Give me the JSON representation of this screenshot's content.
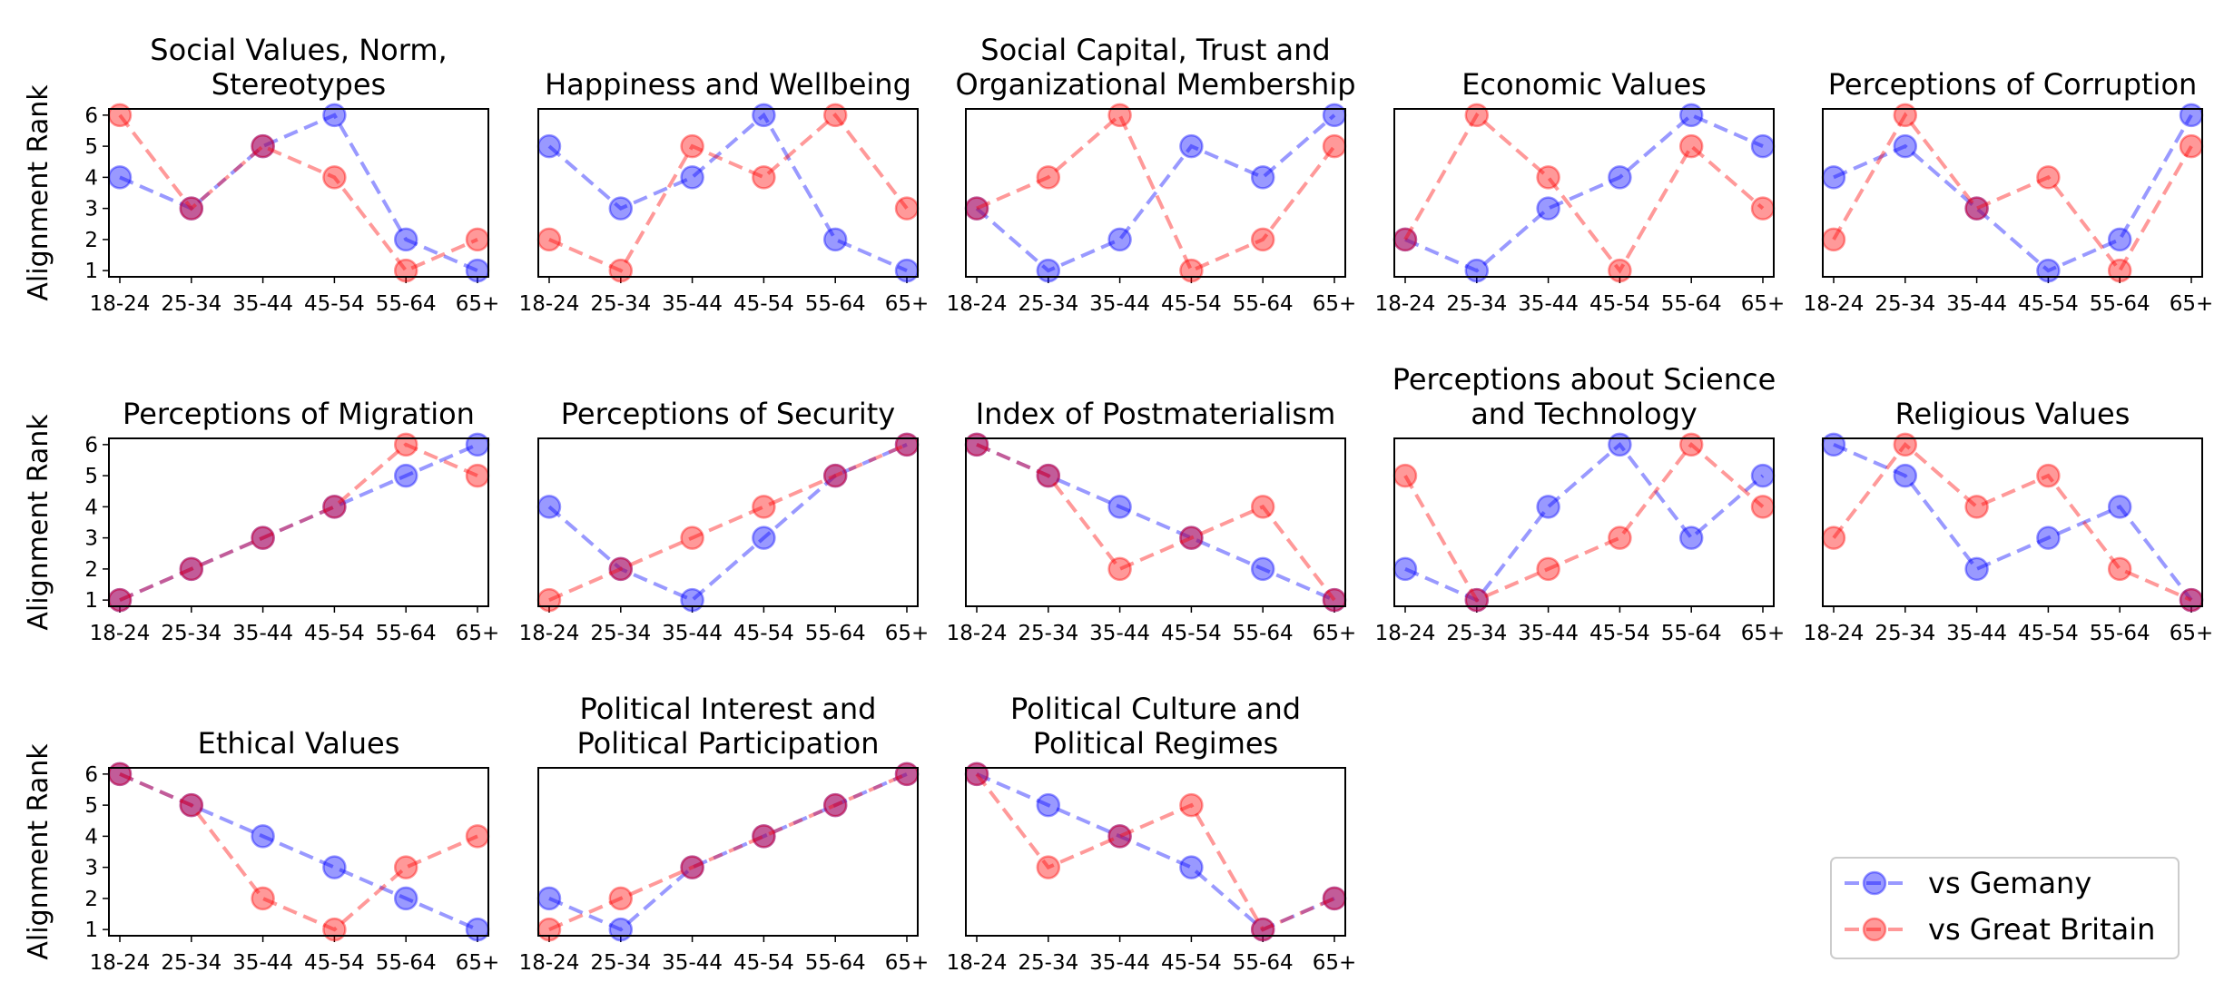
{
  "chart_data": {
    "type": "line",
    "ylabel": "Alignment Rank",
    "categories": [
      "18-24",
      "25-34",
      "35-44",
      "45-54",
      "55-64",
      "65+"
    ],
    "yticks": [
      1,
      2,
      3,
      4,
      5,
      6
    ],
    "ylim": [
      0.8,
      6.2
    ],
    "series_styles": [
      {
        "name": "vs Gemany",
        "color": "#0000ff"
      },
      {
        "name": "vs Great Britain",
        "color": "#ff0000"
      }
    ],
    "panels": [
      {
        "title_lines": [
          "Social Values, Norm,",
          "Stereotypes"
        ],
        "series": [
          {
            "name": "vs Gemany",
            "values": [
              4,
              3,
              5,
              6,
              2,
              1
            ]
          },
          {
            "name": "vs Great Britain",
            "values": [
              6,
              3,
              5,
              4,
              1,
              2
            ]
          }
        ]
      },
      {
        "title_lines": [
          "Happiness and Wellbeing"
        ],
        "series": [
          {
            "name": "vs Gemany",
            "values": [
              5,
              3,
              4,
              6,
              2,
              1
            ]
          },
          {
            "name": "vs Great Britain",
            "values": [
              2,
              1,
              5,
              4,
              6,
              3
            ]
          }
        ]
      },
      {
        "title_lines": [
          "Social Capital, Trust and",
          "Organizational Membership"
        ],
        "series": [
          {
            "name": "vs Gemany",
            "values": [
              3,
              1,
              2,
              5,
              4,
              6
            ]
          },
          {
            "name": "vs Great Britain",
            "values": [
              3,
              4,
              6,
              1,
              2,
              5
            ]
          }
        ]
      },
      {
        "title_lines": [
          "Economic Values"
        ],
        "series": [
          {
            "name": "vs Gemany",
            "values": [
              2,
              1,
              3,
              4,
              6,
              5
            ]
          },
          {
            "name": "vs Great Britain",
            "values": [
              2,
              6,
              4,
              1,
              5,
              3
            ]
          }
        ]
      },
      {
        "title_lines": [
          "Perceptions of Corruption"
        ],
        "series": [
          {
            "name": "vs Gemany",
            "values": [
              4,
              5,
              3,
              1,
              2,
              6
            ]
          },
          {
            "name": "vs Great Britain",
            "values": [
              2,
              6,
              3,
              4,
              1,
              5
            ]
          }
        ]
      },
      {
        "title_lines": [
          "Perceptions of Migration"
        ],
        "series": [
          {
            "name": "vs Gemany",
            "values": [
              1,
              2,
              3,
              4,
              5,
              6
            ]
          },
          {
            "name": "vs Great Britain",
            "values": [
              1,
              2,
              3,
              4,
              6,
              5
            ]
          }
        ]
      },
      {
        "title_lines": [
          "Perceptions of Security"
        ],
        "series": [
          {
            "name": "vs Gemany",
            "values": [
              4,
              2,
              1,
              3,
              5,
              6
            ]
          },
          {
            "name": "vs Great Britain",
            "values": [
              1,
              2,
              3,
              4,
              5,
              6
            ]
          }
        ]
      },
      {
        "title_lines": [
          "Index of Postmaterialism"
        ],
        "series": [
          {
            "name": "vs Gemany",
            "values": [
              6,
              5,
              4,
              3,
              2,
              1
            ]
          },
          {
            "name": "vs Great Britain",
            "values": [
              6,
              5,
              2,
              3,
              4,
              1
            ]
          }
        ]
      },
      {
        "title_lines": [
          "Perceptions about Science",
          "and Technology"
        ],
        "series": [
          {
            "name": "vs Gemany",
            "values": [
              2,
              1,
              4,
              6,
              3,
              5
            ]
          },
          {
            "name": "vs Great Britain",
            "values": [
              5,
              1,
              2,
              3,
              6,
              4
            ]
          }
        ]
      },
      {
        "title_lines": [
          "Religious Values"
        ],
        "series": [
          {
            "name": "vs Gemany",
            "values": [
              6,
              5,
              2,
              3,
              4,
              1
            ]
          },
          {
            "name": "vs Great Britain",
            "values": [
              3,
              6,
              4,
              5,
              2,
              1
            ]
          }
        ]
      },
      {
        "title_lines": [
          "Ethical Values"
        ],
        "series": [
          {
            "name": "vs Gemany",
            "values": [
              6,
              5,
              4,
              3,
              2,
              1
            ]
          },
          {
            "name": "vs Great Britain",
            "values": [
              6,
              5,
              2,
              1,
              3,
              4
            ]
          }
        ]
      },
      {
        "title_lines": [
          "Political Interest and",
          "Political Participation"
        ],
        "series": [
          {
            "name": "vs Gemany",
            "values": [
              2,
              1,
              3,
              4,
              5,
              6
            ]
          },
          {
            "name": "vs Great Britain",
            "values": [
              1,
              2,
              3,
              4,
              5,
              6
            ]
          }
        ]
      },
      {
        "title_lines": [
          "Political Culture and",
          "Political Regimes"
        ],
        "series": [
          {
            "name": "vs Gemany",
            "values": [
              6,
              5,
              4,
              3,
              1,
              2
            ]
          },
          {
            "name": "vs Great Britain",
            "values": [
              6,
              3,
              4,
              5,
              1,
              2
            ]
          }
        ]
      }
    ],
    "legend": {
      "position": "lower-right",
      "entries": [
        "vs Gemany",
        "vs Great Britain"
      ]
    }
  }
}
